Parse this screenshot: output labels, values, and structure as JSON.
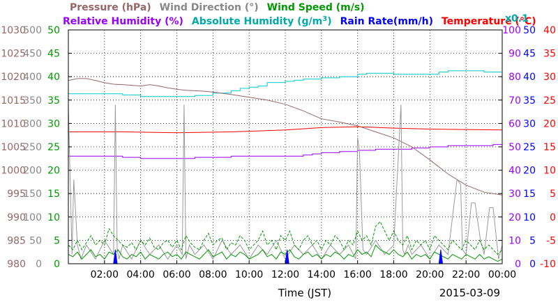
{
  "chart_data": {
    "type": "line",
    "date": "2015-03-09",
    "xlabel": "Time (JST)",
    "x_ticks": [
      "02:00",
      "04:00",
      "06:00",
      "08:00",
      "10:00",
      "12:00",
      "14:00",
      "16:00",
      "18:00",
      "20:00",
      "22:00",
      "00:00"
    ],
    "x_range_hours": [
      0,
      24
    ],
    "grid": true,
    "legend": [
      {
        "key": "pressure",
        "text": "Pressure (hPa)",
        "color": "#996666"
      },
      {
        "key": "wind_dir",
        "text": "Wind Direction (°)",
        "color": "#888888"
      },
      {
        "key": "wind_speed",
        "text": "Wind Speed (m/s)",
        "color": "#009900"
      },
      {
        "key": "rel_hum",
        "text": "Relative Humidity (%)",
        "color": "#9900ff"
      },
      {
        "key": "abs_hum",
        "text": "Absolute Humidity (g/m",
        "sup": "3",
        "tail": ")",
        "color": "#00aaaa"
      },
      {
        "key": "x01",
        "text": "x0.1",
        "color": "#00aaaa"
      },
      {
        "key": "rain",
        "text": "Rain Rate(mm/h)",
        "color": "#0000ff"
      },
      {
        "key": "temp",
        "text": "Temperature (°C)",
        "color": "#ff0000"
      }
    ],
    "axes": {
      "pressure": {
        "color": "#996666",
        "range": [
          980,
          1030
        ],
        "ticks": [
          "980",
          "985",
          "990",
          "995",
          "1000",
          "1005",
          "1010",
          "1015",
          "1020",
          "1025",
          "1030"
        ]
      },
      "wind_dir": {
        "color": "#888888",
        "range": [
          0,
          500
        ],
        "ticks": [
          "0",
          "50",
          "100",
          "150",
          "200",
          "250",
          "300",
          "350",
          "400",
          "450",
          "500"
        ]
      },
      "wind_speed": {
        "color": "#009900",
        "range": [
          0,
          50
        ],
        "ticks": [
          "0",
          "5",
          "10",
          "15",
          "20",
          "25",
          "30",
          "35",
          "40",
          "45",
          "50"
        ]
      },
      "humidity": {
        "color": "#9900ff",
        "range": [
          0,
          100
        ],
        "ticks": [
          "0",
          "10",
          "20",
          "30",
          "40",
          "50",
          "60",
          "70",
          "80",
          "90",
          "100"
        ]
      },
      "rain": {
        "color": "#0000ff",
        "range": [
          0,
          50
        ],
        "ticks": [
          "0",
          "5",
          "10",
          "15",
          "20",
          "25",
          "30",
          "35",
          "40",
          "45",
          "50"
        ]
      },
      "temp": {
        "color": "#ff0000",
        "range": [
          -10,
          40
        ],
        "ticks": [
          "-10",
          "-5",
          "0",
          "5",
          "10",
          "15",
          "20",
          "25",
          "30",
          "35",
          "40"
        ]
      }
    },
    "series": [
      {
        "name": "Pressure (hPa)",
        "axis": "pressure",
        "color": "#996666",
        "x": [
          0,
          0.5,
          1,
          1.5,
          2,
          2.5,
          3,
          4,
          4.5,
          5,
          5.5,
          6,
          6.5,
          7,
          7.5,
          8,
          9,
          10,
          11,
          12,
          13,
          14,
          15,
          16,
          17,
          18,
          19,
          20,
          21,
          22,
          23,
          24
        ],
        "y": [
          1019.2,
          1019.6,
          1019.6,
          1019.2,
          1018.7,
          1018.4,
          1018.3,
          1018.0,
          1018.3,
          1018.0,
          1017.6,
          1017.3,
          1017.1,
          1017.0,
          1016.9,
          1016.7,
          1016.2,
          1015.6,
          1015.0,
          1014.1,
          1012.7,
          1011.0,
          1010.3,
          1009.5,
          1008.2,
          1006.9,
          1005.0,
          1002.2,
          999.2,
          996.8,
          995.3,
          994.7
        ],
        "stroke": 1
      },
      {
        "name": "Temperature (°C)",
        "axis": "temp",
        "color": "#ff0000",
        "x": [
          0,
          3,
          6,
          9,
          12,
          14,
          16,
          18,
          20,
          22,
          24
        ],
        "y": [
          18.2,
          18.2,
          18.0,
          18.2,
          18.6,
          19.1,
          19.3,
          19.0,
          18.8,
          18.7,
          18.6
        ],
        "stroke": 1
      },
      {
        "name": "Relative Humidity (%)",
        "axis": "humidity",
        "color": "#9900ff",
        "x": [
          0,
          2,
          3,
          4,
          5,
          6,
          7,
          8,
          9,
          10,
          11,
          12,
          13,
          13.5,
          14,
          15,
          16,
          17,
          18,
          19,
          20,
          21,
          22,
          23,
          23.5,
          24
        ],
        "y": [
          46,
          46,
          45.5,
          45,
          45,
          45,
          45.5,
          45.5,
          46,
          46,
          46,
          46,
          46.5,
          47,
          47.5,
          48,
          48.5,
          49,
          49,
          49.5,
          50,
          50.5,
          50.5,
          50.5,
          51,
          51
        ],
        "step": true,
        "stroke": 1
      },
      {
        "name": "Absolute Humidity (g/m3)",
        "axis": "humidity",
        "color": "#00cccc",
        "x": [
          0,
          2,
          3,
          4,
          5,
          6,
          7,
          8,
          9,
          9.5,
          10,
          10.5,
          11,
          12,
          12.5,
          13,
          14,
          15,
          16,
          16.5,
          17,
          18,
          19,
          20,
          20.5,
          21,
          22,
          23,
          24
        ],
        "y": [
          72.7,
          72.7,
          72.2,
          71.5,
          71.5,
          71.5,
          72.0,
          73.0,
          74.0,
          75.0,
          75.5,
          76.0,
          77.5,
          78.0,
          78.5,
          79.0,
          79.5,
          80.0,
          81.0,
          81.5,
          81.5,
          81.0,
          81.0,
          81.0,
          82.0,
          82.5,
          82.5,
          82.0,
          82.5
        ],
        "step": true,
        "stroke": 1
      },
      {
        "name": "Wind Direction (°)",
        "axis": "wind_dir",
        "color": "#999999",
        "x": [
          0,
          0.2,
          0.3,
          0.5,
          0.7,
          1,
          1.5,
          2,
          2.5,
          2.6,
          2.7,
          2.8,
          3,
          3.5,
          4,
          4.5,
          5,
          5.5,
          6,
          6.3,
          6.4,
          6.5,
          6.7,
          7,
          7.5,
          8,
          8.5,
          9,
          9.5,
          10,
          10.5,
          11,
          11.5,
          12,
          12.5,
          13,
          13.5,
          14,
          14.5,
          15,
          15.5,
          15.9,
          16,
          16.1,
          16.3,
          16.5,
          17,
          17.5,
          18,
          18.4,
          18.5,
          18.6,
          18.8,
          19,
          19.5,
          20,
          20.5,
          21,
          21.5,
          21.7,
          21.8,
          22,
          22.3,
          22.5,
          22.8,
          23,
          23.3,
          23.5,
          23.8,
          24
        ],
        "y": [
          340,
          20,
          180,
          40,
          10,
          40,
          10,
          50,
          20,
          340,
          30,
          10,
          40,
          10,
          50,
          20,
          40,
          10,
          40,
          20,
          340,
          10,
          40,
          20,
          40,
          10,
          50,
          20,
          40,
          10,
          40,
          20,
          50,
          10,
          40,
          20,
          40,
          10,
          40,
          20,
          40,
          10,
          270,
          240,
          30,
          20,
          50,
          20,
          40,
          340,
          30,
          20,
          40,
          20,
          40,
          10,
          40,
          20,
          180,
          170,
          30,
          20,
          130,
          130,
          50,
          20,
          120,
          120,
          10,
          40
        ],
        "stroke": 1
      },
      {
        "name": "Wind Speed (m/s)",
        "axis": "wind_speed",
        "color": "#009900",
        "x": [
          0,
          0.25,
          0.5,
          0.75,
          1,
          1.25,
          1.5,
          1.75,
          2,
          2.25,
          2.5,
          2.75,
          3,
          3.25,
          3.5,
          3.75,
          4,
          4.25,
          4.5,
          4.75,
          5,
          5.25,
          5.5,
          5.75,
          6,
          6.25,
          6.5,
          6.75,
          7,
          7.25,
          7.5,
          7.75,
          8,
          8.25,
          8.5,
          8.75,
          9,
          9.25,
          9.5,
          9.75,
          10,
          10.25,
          10.5,
          10.75,
          11,
          11.25,
          11.5,
          11.75,
          12,
          12.25,
          12.5,
          12.75,
          13,
          13.25,
          13.5,
          13.75,
          14,
          14.25,
          14.5,
          14.75,
          15,
          15.25,
          15.5,
          15.75,
          16,
          16.25,
          16.5,
          16.75,
          17,
          17.25,
          17.5,
          17.75,
          18,
          18.25,
          18.5,
          18.75,
          19,
          19.25,
          19.5,
          19.75,
          20,
          20.25,
          20.5,
          20.75,
          21,
          21.25,
          21.5,
          21.75,
          22,
          22.25,
          22.5,
          22.75,
          23,
          23.25,
          23.5,
          23.75,
          24
        ],
        "y": [
          2,
          1.5,
          2.5,
          1,
          2,
          3,
          1.5,
          2,
          1,
          2.5,
          2,
          3,
          1.5,
          1,
          2,
          1.5,
          2.5,
          1,
          2,
          1.5,
          1,
          2,
          2.5,
          1.5,
          2,
          1,
          2.5,
          2,
          1.5,
          1,
          2,
          3,
          1.5,
          2,
          2.5,
          1,
          2,
          1.5,
          2.5,
          2,
          1,
          1.5,
          2,
          3,
          1.5,
          2,
          1,
          2.5,
          2,
          3,
          1.5,
          1,
          2,
          2.5,
          1.5,
          2,
          1,
          2,
          1.5,
          2.5,
          2,
          1,
          2,
          1.5,
          3,
          2,
          2.5,
          1.5,
          4,
          3,
          2.5,
          2,
          3,
          2,
          1.5,
          2.5,
          1,
          2,
          1.5,
          2,
          1,
          2.5,
          2,
          1.5,
          1,
          2,
          1.5,
          1,
          2,
          1.5,
          1,
          2,
          1,
          1.5,
          1,
          0.5,
          1
        ],
        "stroke": 1
      },
      {
        "name": "Wind Speed gust (m/s)",
        "axis": "wind_speed",
        "color": "#009900",
        "x": [
          0,
          0.25,
          0.5,
          0.75,
          1,
          1.25,
          1.5,
          1.75,
          2,
          2.25,
          2.5,
          2.75,
          3,
          3.25,
          3.5,
          3.75,
          4,
          4.25,
          4.5,
          4.75,
          5,
          5.25,
          5.5,
          5.75,
          6,
          6.25,
          6.5,
          6.75,
          7,
          7.25,
          7.5,
          7.75,
          8,
          8.25,
          8.5,
          8.75,
          9,
          9.25,
          9.5,
          9.75,
          10,
          10.25,
          10.5,
          10.75,
          11,
          11.25,
          11.5,
          11.75,
          12,
          12.25,
          12.5,
          12.75,
          13,
          13.25,
          13.5,
          13.75,
          14,
          14.25,
          14.5,
          14.75,
          15,
          15.25,
          15.5,
          15.75,
          16,
          16.25,
          16.5,
          16.75,
          17,
          17.25,
          17.5,
          17.75,
          18,
          18.25,
          18.5,
          18.75,
          19,
          19.25,
          19.5,
          19.75,
          20,
          20.25,
          20.5,
          20.75,
          21,
          21.25,
          21.5,
          21.75,
          22,
          22.25,
          22.5,
          22.75,
          23,
          23.25,
          23.5,
          23.75,
          24
        ],
        "y": [
          4,
          3,
          5,
          3,
          4.5,
          6,
          4,
          5,
          4,
          7.5,
          6,
          5,
          4,
          3.5,
          4.5,
          3,
          5,
          4,
          5.5,
          3.5,
          3,
          4.5,
          5,
          3.5,
          5,
          3,
          6,
          4.5,
          3.5,
          3,
          5,
          6.5,
          4,
          5,
          5.5,
          3,
          4.5,
          4,
          6,
          5,
          3,
          4,
          5,
          7,
          4,
          5,
          3,
          6,
          5,
          7,
          4,
          3,
          5,
          6,
          4,
          5,
          3,
          5,
          4,
          6,
          5,
          3,
          5,
          4,
          7,
          5,
          6,
          4,
          8,
          9,
          7,
          5,
          7,
          5,
          4,
          6,
          3,
          5,
          4,
          5,
          3,
          6,
          5,
          4,
          3,
          5,
          4,
          3,
          5,
          4,
          3,
          5,
          3,
          4,
          3,
          2,
          3
        ],
        "dashed": true,
        "stroke": 1
      },
      {
        "name": "Rain Rate(mm/h)",
        "axis": "rain",
        "color": "#0000ff",
        "x": [
          0,
          2.5,
          2.55,
          2.6,
          2.65,
          2.7,
          12.0,
          12.05,
          12.1,
          12.15,
          12.2,
          20.5,
          20.55,
          20.6,
          20.65,
          20.7,
          24
        ],
        "y": [
          0,
          0,
          1.5,
          3,
          1.5,
          0,
          0,
          1.5,
          3,
          1.5,
          0,
          0,
          1.5,
          3,
          1.5,
          0,
          0
        ],
        "filled": true,
        "stroke": 1
      }
    ]
  }
}
